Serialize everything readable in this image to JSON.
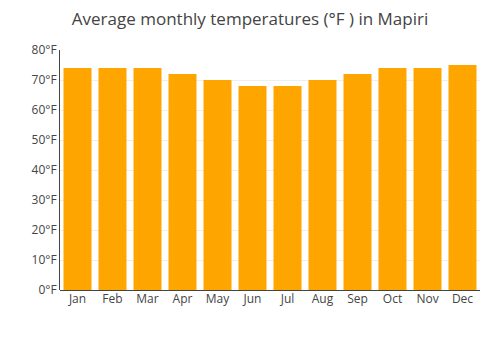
{
  "chart_data": {
    "type": "bar",
    "title": "Average monthly temperatures (°F ) in Mapiri",
    "categories": [
      "Jan",
      "Feb",
      "Mar",
      "Apr",
      "May",
      "Jun",
      "Jul",
      "Aug",
      "Sep",
      "Oct",
      "Nov",
      "Dec"
    ],
    "values": [
      74,
      74,
      74,
      72,
      70,
      68,
      68,
      70,
      72,
      74,
      74,
      75
    ],
    "color": "#FFA500",
    "ylim": [
      0,
      80
    ],
    "yticks": [
      {
        "value": 0,
        "label": "0°F"
      },
      {
        "value": 10,
        "label": "10°F"
      },
      {
        "value": 20,
        "label": "20°F"
      },
      {
        "value": 30,
        "label": "30°F"
      },
      {
        "value": 40,
        "label": "40°F"
      },
      {
        "value": 50,
        "label": "50°F"
      },
      {
        "value": 60,
        "label": "60°F"
      },
      {
        "value": 70,
        "label": "70°F"
      },
      {
        "value": 80,
        "label": "80°F"
      }
    ],
    "grid": true
  }
}
